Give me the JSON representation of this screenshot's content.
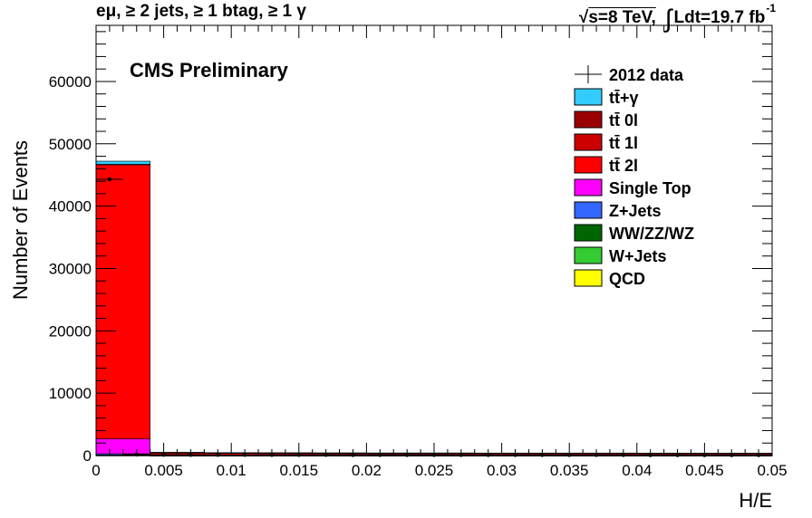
{
  "header": {
    "selection": "eμ, ≥ 2 jets, ≥ 1 btag, ≥ 1 γ",
    "energy": "s=8 TeV,",
    "lumi": "Ldt=19.7 fb",
    "lumi_exp": "-1"
  },
  "chart_data": {
    "type": "bar",
    "stacked": true,
    "title": "CMS Preliminary",
    "xlabel": "H/E",
    "ylabel": "Number of Events",
    "xlim": [
      0,
      0.05
    ],
    "ylim": [
      0,
      69000
    ],
    "x_ticks": [
      "0",
      "0.005",
      "0.01",
      "0.015",
      "0.02",
      "0.025",
      "0.03",
      "0.035",
      "0.04",
      "0.045",
      "0.05"
    ],
    "y_ticks": [
      "0",
      "10000",
      "20000",
      "30000",
      "40000",
      "50000",
      "60000"
    ],
    "bin_edges": [
      0,
      0.004,
      0.008,
      0.012,
      0.016,
      0.02,
      0.024,
      0.028,
      0.032,
      0.036,
      0.04,
      0.044,
      0.048,
      0.05
    ],
    "legend_position": "top-right",
    "series": [
      {
        "name": "QCD",
        "color": "#ffff00",
        "values": [
          0,
          0,
          0,
          0,
          0,
          0,
          0,
          0,
          0,
          0,
          0,
          0,
          0
        ]
      },
      {
        "name": "W+Jets",
        "color": "#33cc33",
        "values": [
          20,
          5,
          5,
          5,
          5,
          5,
          5,
          5,
          5,
          5,
          5,
          5,
          5
        ]
      },
      {
        "name": "WW/ZZ/WZ",
        "color": "#006600",
        "values": [
          60,
          5,
          5,
          5,
          5,
          5,
          5,
          5,
          5,
          5,
          5,
          5,
          5
        ]
      },
      {
        "name": "Z+Jets",
        "color": "#3366ff",
        "values": [
          200,
          5,
          5,
          5,
          5,
          5,
          5,
          5,
          5,
          5,
          5,
          5,
          5
        ]
      },
      {
        "name": "Single Top",
        "color": "#ff00ff",
        "values": [
          2400,
          20,
          20,
          20,
          20,
          20,
          20,
          20,
          20,
          20,
          20,
          20,
          20
        ]
      },
      {
        "name": "tt̄ 2l",
        "color": "#ff0000",
        "values": [
          44000,
          350,
          300,
          280,
          270,
          260,
          260,
          250,
          250,
          250,
          240,
          240,
          240
        ]
      },
      {
        "name": "tt̄ 1l",
        "color": "#cc0000",
        "values": [
          30,
          100,
          100,
          100,
          100,
          100,
          100,
          100,
          100,
          100,
          100,
          100,
          100
        ]
      },
      {
        "name": "tt̄ 0l",
        "color": "#990000",
        "values": [
          0,
          5,
          5,
          5,
          5,
          5,
          5,
          5,
          5,
          5,
          5,
          5,
          5
        ]
      },
      {
        "name": "tt̄+γ",
        "color": "#33ccff",
        "values": [
          500,
          10,
          10,
          10,
          10,
          10,
          10,
          10,
          10,
          10,
          10,
          10,
          10
        ]
      }
    ],
    "data_points": {
      "name": "2012 data",
      "x": [
        0.001,
        0.003,
        0.005,
        0.007,
        0.009,
        0.011,
        0.013,
        0.015,
        0.017,
        0.019,
        0.021,
        0.023,
        0.025,
        0.027,
        0.029,
        0.031,
        0.033,
        0.035,
        0.037,
        0.039,
        0.041,
        0.043,
        0.045,
        0.047,
        0.049
      ],
      "y": [
        44300,
        150,
        110,
        100,
        95,
        95,
        90,
        90,
        90,
        85,
        85,
        85,
        85,
        80,
        80,
        80,
        80,
        75,
        75,
        75,
        70,
        70,
        70,
        70,
        70
      ],
      "xerr": 0.001
    },
    "legend_order": [
      "2012 data",
      "tt̄+γ",
      "tt̄ 0l",
      "tt̄ 1l",
      "tt̄ 2l",
      "Single Top",
      "Z+Jets",
      "WW/ZZ/WZ",
      "W+Jets",
      "QCD"
    ]
  }
}
